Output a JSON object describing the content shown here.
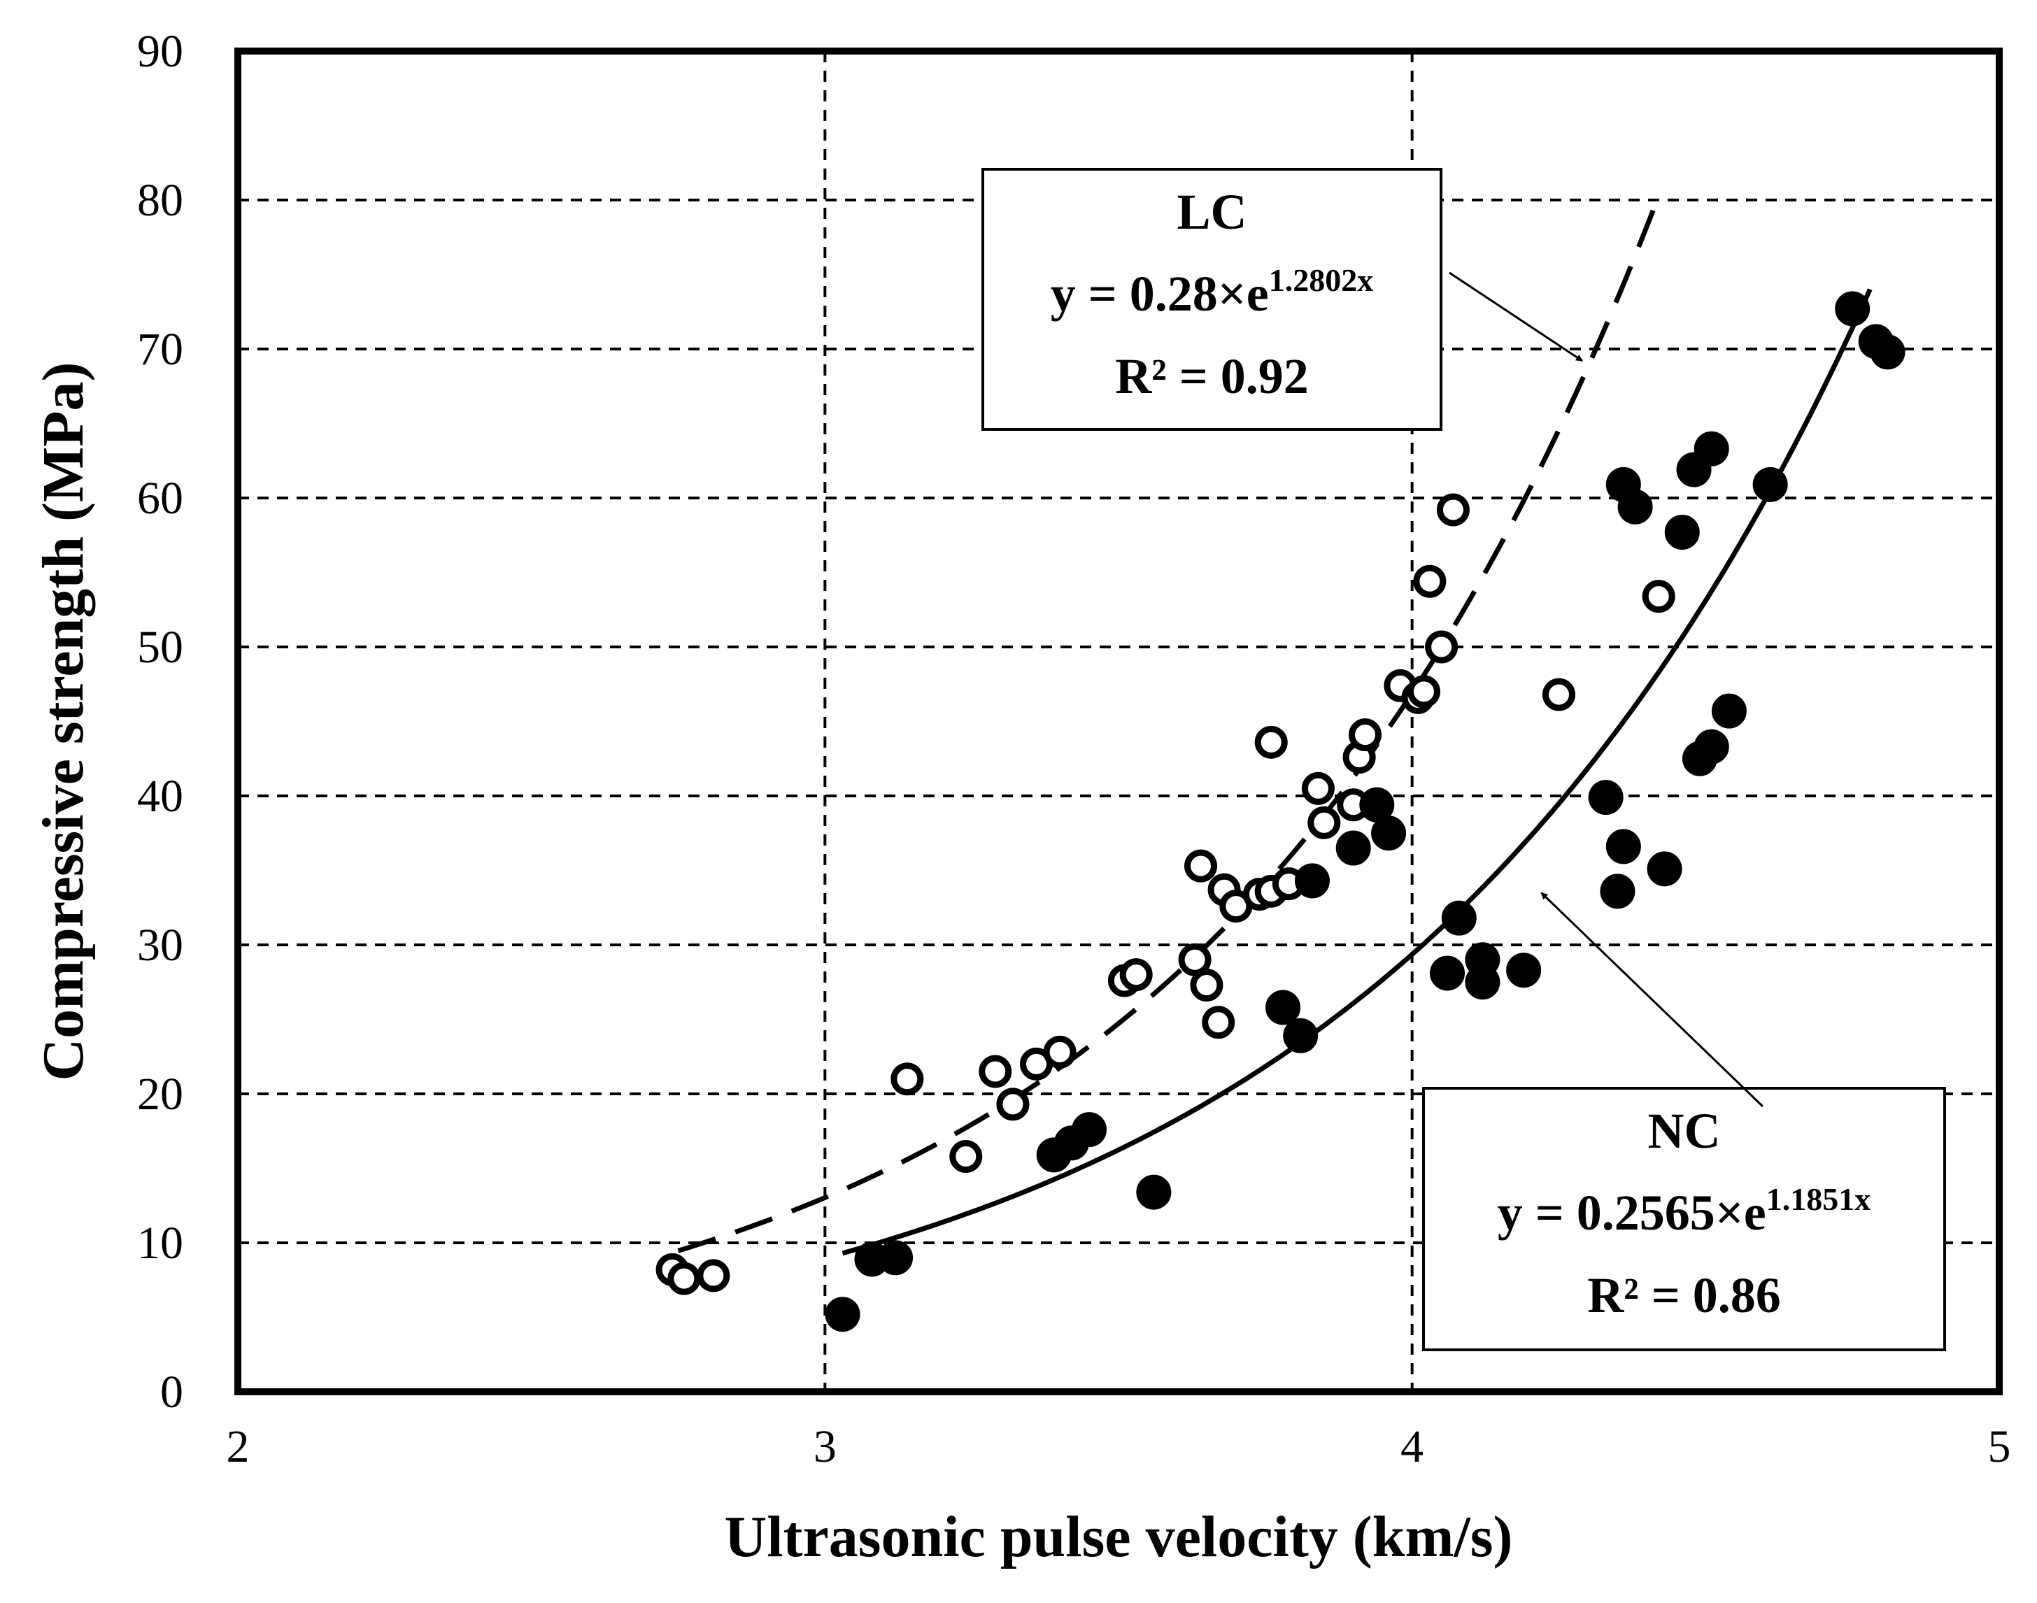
{
  "chart_data": {
    "type": "scatter",
    "xlabel": "Ultrasonic pulse velocity (km/s)",
    "ylabel": "Compressive strength (MPa)",
    "xlim": [
      2,
      5
    ],
    "ylim": [
      0,
      90
    ],
    "x_ticks": [
      "2",
      "3",
      "4",
      "5"
    ],
    "y_ticks": [
      "0",
      "10",
      "20",
      "30",
      "40",
      "50",
      "60",
      "70",
      "80",
      "90"
    ],
    "grid": true,
    "series": [
      {
        "name": "LC",
        "marker": "open-circle",
        "points": [
          [
            2.74,
            8.2
          ],
          [
            2.76,
            7.6
          ],
          [
            2.81,
            7.8
          ],
          [
            3.14,
            21.0
          ],
          [
            3.24,
            15.8
          ],
          [
            3.29,
            21.5
          ],
          [
            3.32,
            19.3
          ],
          [
            3.36,
            22.0
          ],
          [
            3.4,
            22.8
          ],
          [
            3.51,
            27.6
          ],
          [
            3.53,
            28.0
          ],
          [
            3.63,
            29.0
          ],
          [
            3.64,
            35.3
          ],
          [
            3.65,
            27.3
          ],
          [
            3.67,
            24.8
          ],
          [
            3.68,
            33.7
          ],
          [
            3.7,
            32.6
          ],
          [
            3.74,
            33.4
          ],
          [
            3.76,
            33.6
          ],
          [
            3.76,
            43.6
          ],
          [
            3.79,
            34.1
          ],
          [
            3.84,
            40.5
          ],
          [
            3.85,
            38.2
          ],
          [
            3.9,
            39.4
          ],
          [
            3.91,
            42.6
          ],
          [
            3.92,
            44.1
          ],
          [
            3.98,
            47.4
          ],
          [
            4.01,
            46.6
          ],
          [
            4.02,
            47.0
          ],
          [
            4.03,
            54.4
          ],
          [
            4.05,
            50.0
          ],
          [
            4.07,
            59.2
          ],
          [
            4.25,
            46.8
          ],
          [
            4.42,
            53.4
          ]
        ]
      },
      {
        "name": "NC",
        "marker": "filled-circle",
        "points": [
          [
            3.03,
            5.2
          ],
          [
            3.08,
            8.9
          ],
          [
            3.12,
            9.0
          ],
          [
            3.39,
            15.9
          ],
          [
            3.42,
            16.7
          ],
          [
            3.45,
            17.6
          ],
          [
            3.56,
            13.4
          ],
          [
            3.78,
            25.8
          ],
          [
            3.81,
            23.9
          ],
          [
            3.83,
            34.3
          ],
          [
            3.9,
            36.5
          ],
          [
            3.94,
            39.4
          ],
          [
            3.96,
            37.5
          ],
          [
            4.06,
            28.1
          ],
          [
            4.08,
            31.8
          ],
          [
            4.12,
            29.0
          ],
          [
            4.12,
            27.5
          ],
          [
            4.19,
            28.3
          ],
          [
            4.33,
            39.9
          ],
          [
            4.35,
            33.6
          ],
          [
            4.36,
            36.6
          ],
          [
            4.36,
            60.9
          ],
          [
            4.38,
            59.4
          ],
          [
            4.43,
            35.1
          ],
          [
            4.46,
            57.7
          ],
          [
            4.48,
            61.9
          ],
          [
            4.49,
            42.5
          ],
          [
            4.51,
            63.3
          ],
          [
            4.51,
            43.3
          ],
          [
            4.54,
            45.7
          ],
          [
            4.61,
            60.9
          ],
          [
            4.75,
            72.7
          ],
          [
            4.79,
            70.5
          ],
          [
            4.81,
            69.8
          ]
        ]
      }
    ],
    "fits": [
      {
        "name": "LC",
        "style": "dashed",
        "a": 0.28,
        "b": 1.2802,
        "x_range": [
          2.75,
          4.42
        ],
        "label": "LC",
        "equation_main": "y = 0.28×e",
        "equation_exponent": "1.2802x",
        "r2": "R² = 0.92"
      },
      {
        "name": "NC",
        "style": "solid",
        "a": 0.2565,
        "b": 1.1851,
        "x_range": [
          3.03,
          4.78
        ],
        "label": "NC",
        "equation_main": "y = 0.2565×e",
        "equation_exponent": "1.1851x",
        "r2": "R² = 0.86"
      }
    ],
    "annotations": [
      {
        "for": "LC",
        "arrow_tip": [
          4.29,
          69.2
        ]
      },
      {
        "for": "NC",
        "arrow_tip": [
          4.22,
          33.5
        ]
      }
    ]
  }
}
